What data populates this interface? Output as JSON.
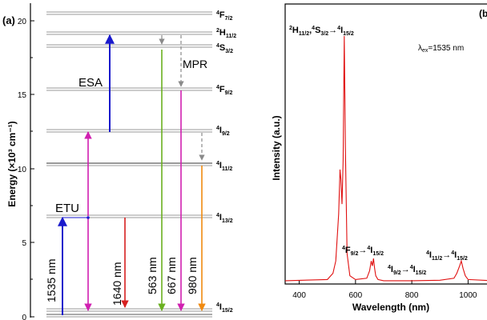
{
  "panel_a": {
    "label": "(a)",
    "ylabel": "Energy (×10³ cm⁻¹)",
    "yticks": [
      "0",
      "5",
      "10",
      "15",
      "20"
    ],
    "level_labels": [
      {
        "base": "4",
        "main": "F",
        "sub": "7/2"
      },
      {
        "base": "2",
        "main": "H",
        "sub": "11/2"
      },
      {
        "base": "4",
        "main": "S",
        "sub": "3/2"
      },
      {
        "base": "4",
        "main": "F",
        "sub": "9/2"
      },
      {
        "base": "4",
        "main": "I",
        "sub": "9/2"
      },
      {
        "base": "4",
        "main": "I",
        "sub": "11/2"
      },
      {
        "base": "4",
        "main": "I",
        "sub": "13/2"
      },
      {
        "base": "4",
        "main": "I",
        "sub": "15/2"
      }
    ],
    "process_labels": {
      "esa": "ESA",
      "etu": "ETU",
      "mpr": "MPR"
    },
    "transitions": [
      {
        "label": "1535 nm",
        "color": "#1a1acc"
      },
      {
        "label": "1640 nm",
        "color": "#d62020"
      },
      {
        "label": "563 nm",
        "color": "#6ab020"
      },
      {
        "label": "667 nm",
        "color": "#d020b0"
      },
      {
        "label": "980 nm",
        "color": "#f08a10"
      }
    ]
  },
  "panel_b": {
    "label": "(b)",
    "excitation": {
      "lambda": "λ",
      "sub": "ex",
      "value": "=1535 nm"
    },
    "xlabel": "Wavelength (nm)",
    "ylabel": "Intensity (a.u.)",
    "xticks": [
      "400",
      "600",
      "800",
      "1000"
    ],
    "peak_labels": [
      {
        "parts": [
          "2",
          "H",
          "11/2",
          ",",
          "4",
          "S",
          "3/2",
          "→",
          "4",
          "I",
          "15/2"
        ]
      },
      {
        "parts": [
          "4",
          "F",
          "9/2",
          "→",
          "4",
          "I",
          "15/2"
        ]
      },
      {
        "parts": [
          "4",
          "I",
          "9/2",
          "→",
          "4",
          "I",
          "15/2"
        ]
      },
      {
        "parts": [
          "4",
          "I",
          "11/2",
          "→",
          "4",
          "I",
          "15/2"
        ]
      }
    ]
  },
  "chart_data": {
    "type": "line",
    "xlabel": "Wavelength (nm)",
    "ylabel": "Intensity (a.u.)",
    "xlim": [
      350,
      1090
    ],
    "x": [
      350,
      500,
      520,
      530,
      540,
      545,
      548,
      552,
      556,
      560,
      564,
      570,
      580,
      600,
      640,
      650,
      656,
      660,
      664,
      668,
      672,
      680,
      700,
      800,
      900,
      950,
      960,
      970,
      976,
      982,
      990,
      1000,
      1090
    ],
    "series": [
      {
        "values": [
          0.01,
          0.015,
          0.04,
          0.09,
          0.28,
          0.46,
          0.42,
          0.32,
          0.5,
          1.0,
          0.55,
          0.12,
          0.03,
          0.015,
          0.02,
          0.05,
          0.09,
          0.07,
          0.1,
          0.06,
          0.03,
          0.015,
          0.01,
          0.01,
          0.012,
          0.02,
          0.04,
          0.07,
          0.09,
          0.06,
          0.03,
          0.015,
          0.01
        ],
        "color": "#e01010"
      }
    ]
  }
}
